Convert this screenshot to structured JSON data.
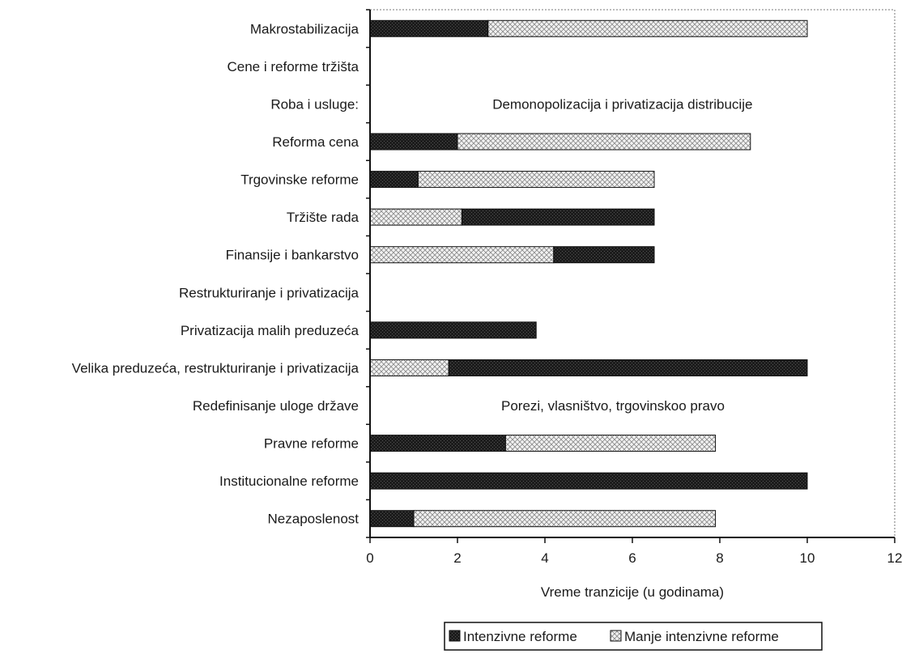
{
  "chart_data": {
    "type": "bar",
    "orientation": "horizontal",
    "stacked": true,
    "xlabel": "Vreme tranzicije (u godinama)",
    "xlim": [
      0,
      12
    ],
    "xticks": [
      "0",
      "2",
      "4",
      "6",
      "8",
      "10",
      "12"
    ],
    "grid": false,
    "legend_position": "bottom",
    "categories": [
      "Makrostabilizacija",
      "Cene i reforme tržišta",
      "Roba i usluge:",
      "Reforma cena",
      "Trgovinske reforme",
      "Tržište rada",
      "Finansije i bankarstvo",
      "Restrukturiranje i privatizacija",
      "Privatizacija malih preduzeća",
      "Velika preduzeća, restrukturiranje i privatizacija",
      "Redefinisanje uloge države",
      "Pravne reforme",
      "Institucionalne reforme",
      "Nezaposlenost"
    ],
    "series": [
      {
        "name": "Intenzivne reforme",
        "color": "#1c1c1c",
        "pattern": "solid-dark"
      },
      {
        "name": "Manje intenzivne reforme",
        "color": "#e6e6e6",
        "pattern": "crosshatch-light"
      }
    ],
    "segments": [
      [
        {
          "series": 0,
          "value": 2.7
        },
        {
          "series": 1,
          "value": 7.3
        }
      ],
      [],
      [],
      [
        {
          "series": 0,
          "value": 2.0
        },
        {
          "series": 1,
          "value": 6.7
        }
      ],
      [
        {
          "series": 0,
          "value": 1.1
        },
        {
          "series": 1,
          "value": 5.4
        }
      ],
      [
        {
          "series": 1,
          "value": 2.1
        },
        {
          "series": 0,
          "value": 4.4
        }
      ],
      [
        {
          "series": 1,
          "value": 4.2
        },
        {
          "series": 0,
          "value": 2.3
        }
      ],
      [],
      [
        {
          "series": 0,
          "value": 3.8
        }
      ],
      [
        {
          "series": 1,
          "value": 1.8
        },
        {
          "series": 0,
          "value": 8.2
        }
      ],
      [],
      [
        {
          "series": 0,
          "value": 3.1
        },
        {
          "series": 1,
          "value": 4.8
        }
      ],
      [
        {
          "series": 0,
          "value": 10.0
        }
      ],
      [
        {
          "series": 0,
          "value": 1.0
        },
        {
          "series": 1,
          "value": 6.9
        }
      ]
    ],
    "annotations": [
      {
        "text": "Demonopolizacija i privatizacija distribucije",
        "category_index": 2,
        "x": 2.8
      },
      {
        "text": "Porezi, vlasništvo, trgovinskoo pravo",
        "category_index": 10,
        "x": 3.0
      }
    ]
  }
}
